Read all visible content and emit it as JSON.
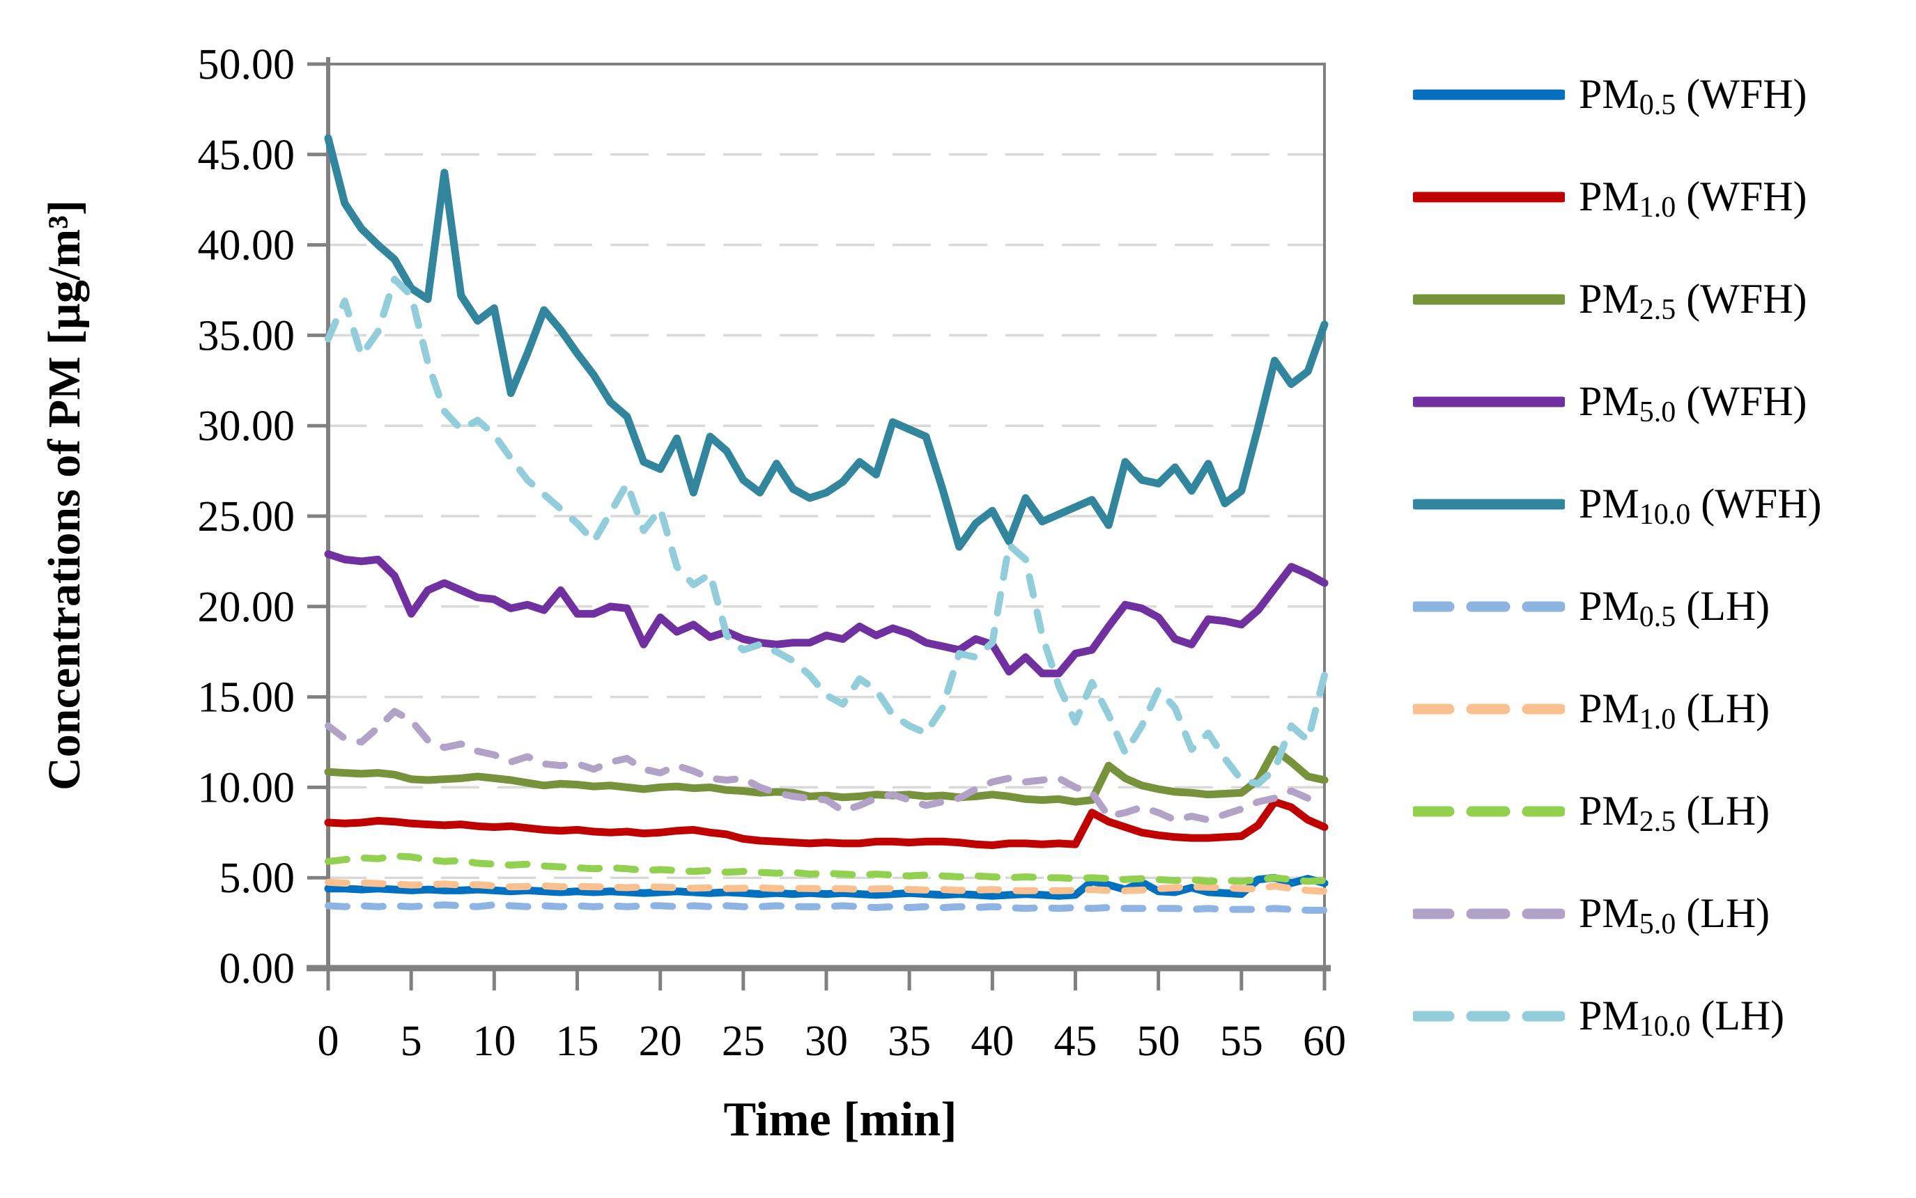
{
  "chart_data": {
    "type": "line",
    "title": "",
    "xlabel": "Time [min]",
    "ylabel": "Concentrations of PM [µg/m³]",
    "xlim": [
      0,
      60
    ],
    "ylim": [
      0,
      50
    ],
    "x_tick_labels": [
      "0",
      "5",
      "10",
      "15",
      "20",
      "25",
      "30",
      "35",
      "40",
      "45",
      "50",
      "55",
      "60"
    ],
    "y_tick_labels": [
      "0.00",
      "5.00",
      "10.00",
      "15.00",
      "20.00",
      "25.00",
      "30.00",
      "35.00",
      "40.00",
      "45.00",
      "50.00"
    ],
    "grid": "horizontal-dashed",
    "legend_position": "right",
    "colors": {
      "axis": "#808080",
      "grid": "#D9D9D9",
      "text": "#000000",
      "background": "#FFFFFF"
    },
    "x_step_minutes": 1,
    "series": [
      {
        "name": "PM0.5 (WFH)",
        "label_base": "PM",
        "label_sub": "0.5",
        "label_rest": "(WFH)",
        "color": "#0070C0",
        "style": "solid",
        "values": [
          4.4,
          4.4,
          4.35,
          4.4,
          4.35,
          4.3,
          4.35,
          4.3,
          4.3,
          4.35,
          4.3,
          4.25,
          4.3,
          4.25,
          4.2,
          4.25,
          4.2,
          4.25,
          4.2,
          4.15,
          4.2,
          4.25,
          4.2,
          4.15,
          4.2,
          4.15,
          4.1,
          4.15,
          4.1,
          4.15,
          4.1,
          4.15,
          4.1,
          4.05,
          4.1,
          4.15,
          4.1,
          4.05,
          4.1,
          4.05,
          4.0,
          4.05,
          4.1,
          4.05,
          4.0,
          4.05,
          4.8,
          4.6,
          4.35,
          4.75,
          4.25,
          4.2,
          4.45,
          4.2,
          4.15,
          4.1,
          4.9,
          5.0,
          4.7,
          4.95,
          4.7
        ]
      },
      {
        "name": "PM1.0 (WFH)",
        "label_base": "PM",
        "label_sub": "1.0",
        "label_rest": "(WFH)",
        "color": "#C00000",
        "style": "solid",
        "values": [
          8.05,
          8.0,
          8.05,
          8.15,
          8.1,
          8.0,
          7.95,
          7.9,
          7.95,
          7.85,
          7.8,
          7.85,
          7.75,
          7.65,
          7.6,
          7.65,
          7.55,
          7.5,
          7.55,
          7.45,
          7.5,
          7.6,
          7.65,
          7.5,
          7.4,
          7.15,
          7.05,
          7.0,
          6.95,
          6.9,
          6.95,
          6.9,
          6.9,
          7.0,
          7.0,
          6.95,
          7.0,
          7.0,
          6.95,
          6.85,
          6.8,
          6.9,
          6.9,
          6.85,
          6.9,
          6.85,
          8.6,
          8.1,
          7.8,
          7.5,
          7.35,
          7.25,
          7.2,
          7.2,
          7.25,
          7.3,
          7.9,
          9.2,
          8.9,
          8.2,
          7.8
        ]
      },
      {
        "name": "PM2.5 (WFH)",
        "label_base": "PM",
        "label_sub": "2.5",
        "label_rest": "(WFH)",
        "color": "#76933C",
        "style": "solid",
        "values": [
          10.85,
          10.8,
          10.75,
          10.8,
          10.7,
          10.45,
          10.4,
          10.45,
          10.5,
          10.6,
          10.5,
          10.4,
          10.25,
          10.1,
          10.2,
          10.15,
          10.05,
          10.1,
          10.0,
          9.9,
          10.0,
          10.05,
          9.95,
          10.0,
          9.85,
          9.8,
          9.7,
          9.75,
          9.7,
          9.5,
          9.55,
          9.45,
          9.5,
          9.6,
          9.55,
          9.6,
          9.5,
          9.55,
          9.45,
          9.5,
          9.6,
          9.5,
          9.35,
          9.3,
          9.35,
          9.2,
          9.3,
          11.2,
          10.5,
          10.1,
          9.9,
          9.75,
          9.7,
          9.6,
          9.65,
          9.7,
          10.4,
          12.1,
          11.4,
          10.6,
          10.4
        ]
      },
      {
        "name": "PM5.0 (WFH)",
        "label_base": "PM",
        "label_sub": "5.0",
        "label_rest": "(WFH)",
        "color": "#7030A0",
        "style": "solid",
        "values": [
          22.9,
          22.6,
          22.5,
          22.6,
          21.7,
          19.6,
          20.9,
          21.3,
          20.9,
          20.5,
          20.4,
          19.9,
          20.1,
          19.8,
          20.9,
          19.6,
          19.6,
          20.0,
          19.9,
          17.9,
          19.4,
          18.6,
          19.0,
          18.3,
          18.6,
          18.2,
          18.0,
          17.9,
          18.0,
          18.0,
          18.4,
          18.2,
          18.9,
          18.4,
          18.8,
          18.5,
          18.0,
          17.8,
          17.6,
          18.2,
          17.9,
          16.4,
          17.2,
          16.3,
          16.3,
          17.4,
          17.6,
          18.9,
          20.1,
          19.9,
          19.4,
          18.2,
          17.9,
          19.3,
          19.2,
          19.0,
          19.8,
          21.0,
          22.2,
          21.8,
          21.3
        ]
      },
      {
        "name": "PM10.0 (WFH)",
        "label_base": "PM",
        "label_sub": "10.0",
        "label_rest": "(WFH)",
        "color": "#31859C",
        "style": "solid",
        "values": [
          45.9,
          42.3,
          40.9,
          40.0,
          39.2,
          37.6,
          37.0,
          44.0,
          37.2,
          35.8,
          36.5,
          31.8,
          34.0,
          36.4,
          35.3,
          34.0,
          32.8,
          31.3,
          30.5,
          28.0,
          27.6,
          29.3,
          26.3,
          29.4,
          28.6,
          27.0,
          26.3,
          27.9,
          26.5,
          26.0,
          26.3,
          26.9,
          28.0,
          27.3,
          30.2,
          29.8,
          29.4,
          26.5,
          23.3,
          24.6,
          25.3,
          23.6,
          26.0,
          24.7,
          25.1,
          25.5,
          25.9,
          24.5,
          28.0,
          27.0,
          26.8,
          27.7,
          26.4,
          27.9,
          25.7,
          26.4,
          29.9,
          33.6,
          32.3,
          33.0,
          35.6
        ]
      },
      {
        "name": "PM0.5 (LH)",
        "label_base": "PM",
        "label_sub": "0.5",
        "label_rest": "(LH)",
        "color": "#8EB4E3",
        "style": "dashed",
        "values": [
          3.45,
          3.4,
          3.45,
          3.4,
          3.45,
          3.4,
          3.45,
          3.5,
          3.45,
          3.4,
          3.5,
          3.45,
          3.4,
          3.45,
          3.4,
          3.45,
          3.4,
          3.45,
          3.4,
          3.45,
          3.45,
          3.4,
          3.45,
          3.4,
          3.45,
          3.4,
          3.4,
          3.45,
          3.4,
          3.4,
          3.4,
          3.45,
          3.4,
          3.35,
          3.4,
          3.35,
          3.4,
          3.35,
          3.4,
          3.35,
          3.4,
          3.35,
          3.3,
          3.35,
          3.3,
          3.35,
          3.3,
          3.35,
          3.3,
          3.3,
          3.3,
          3.3,
          3.25,
          3.3,
          3.25,
          3.25,
          3.25,
          3.3,
          3.25,
          3.2,
          3.2
        ]
      },
      {
        "name": "PM1.0 (LH)",
        "label_base": "PM",
        "label_sub": "1.0",
        "label_rest": "(LH)",
        "color": "#FAC090",
        "style": "dashed",
        "values": [
          4.75,
          4.7,
          4.72,
          4.68,
          4.65,
          4.6,
          4.62,
          4.65,
          4.6,
          4.62,
          4.55,
          4.5,
          4.52,
          4.55,
          4.5,
          4.52,
          4.5,
          4.48,
          4.45,
          4.5,
          4.48,
          4.45,
          4.42,
          4.45,
          4.4,
          4.42,
          4.45,
          4.4,
          4.42,
          4.4,
          4.38,
          4.4,
          4.35,
          4.38,
          4.4,
          4.35,
          4.32,
          4.35,
          4.3,
          4.32,
          4.35,
          4.3,
          4.28,
          4.3,
          4.28,
          4.3,
          4.35,
          4.3,
          4.28,
          4.32,
          4.4,
          4.45,
          4.5,
          4.48,
          4.45,
          4.4,
          4.38,
          4.55,
          4.4,
          4.3,
          4.25
        ]
      },
      {
        "name": "PM2.5 (LH)",
        "label_base": "PM",
        "label_sub": "2.5",
        "label_rest": "(LH)",
        "color": "#92D050",
        "style": "dashed",
        "values": [
          5.9,
          6.0,
          6.1,
          6.05,
          6.2,
          6.15,
          6.0,
          5.9,
          5.95,
          5.8,
          5.75,
          5.7,
          5.75,
          5.65,
          5.6,
          5.55,
          5.5,
          5.55,
          5.5,
          5.4,
          5.45,
          5.4,
          5.35,
          5.4,
          5.3,
          5.35,
          5.3,
          5.25,
          5.3,
          5.2,
          5.25,
          5.2,
          5.15,
          5.2,
          5.15,
          5.1,
          5.15,
          5.1,
          5.05,
          5.1,
          5.05,
          5.0,
          5.05,
          5.0,
          5.0,
          4.95,
          5.0,
          4.95,
          4.9,
          4.95,
          4.9,
          4.85,
          4.9,
          4.8,
          4.85,
          4.8,
          4.9,
          5.0,
          4.9,
          4.8,
          4.85
        ]
      },
      {
        "name": "PM5.0 (LH)",
        "label_base": "PM",
        "label_sub": "5.0",
        "label_rest": "(LH)",
        "color": "#B2A2C7",
        "style": "dashed",
        "values": [
          13.4,
          12.7,
          12.5,
          13.3,
          14.2,
          13.7,
          12.6,
          12.2,
          12.4,
          12.0,
          11.8,
          11.4,
          11.7,
          11.3,
          11.2,
          11.3,
          11.0,
          11.4,
          11.6,
          11.0,
          10.8,
          11.2,
          10.9,
          10.5,
          10.4,
          10.5,
          10.0,
          9.7,
          9.5,
          9.4,
          9.3,
          8.7,
          9.0,
          9.4,
          9.6,
          9.3,
          9.0,
          9.2,
          9.4,
          9.9,
          10.3,
          10.5,
          10.3,
          10.4,
          10.5,
          10.0,
          9.7,
          8.4,
          8.6,
          8.9,
          8.6,
          8.2,
          8.4,
          8.2,
          8.5,
          8.8,
          9.2,
          9.4,
          9.8,
          9.4,
          9.2
        ]
      },
      {
        "name": "PM10.0 (LH)",
        "label_base": "PM",
        "label_sub": "10.0",
        "label_rest": "(LH)",
        "color": "#92CDDC",
        "style": "dashed",
        "values": [
          34.8,
          36.9,
          33.9,
          35.2,
          38.1,
          37.2,
          33.5,
          30.8,
          29.8,
          30.3,
          29.5,
          28.2,
          27.0,
          26.2,
          25.4,
          24.6,
          23.6,
          25.2,
          26.8,
          24.2,
          25.4,
          22.2,
          21.2,
          21.8,
          18.4,
          17.6,
          17.9,
          17.5,
          17.0,
          16.2,
          15.1,
          14.6,
          16.0,
          15.4,
          14.0,
          13.4,
          13.0,
          14.4,
          17.4,
          17.2,
          18.0,
          23.4,
          22.6,
          18.4,
          15.6,
          13.6,
          15.8,
          14.0,
          11.9,
          13.4,
          15.4,
          14.4,
          12.1,
          13.0,
          11.6,
          10.4,
          10.2,
          11.0,
          13.4,
          12.6,
          16.2
        ]
      }
    ]
  }
}
